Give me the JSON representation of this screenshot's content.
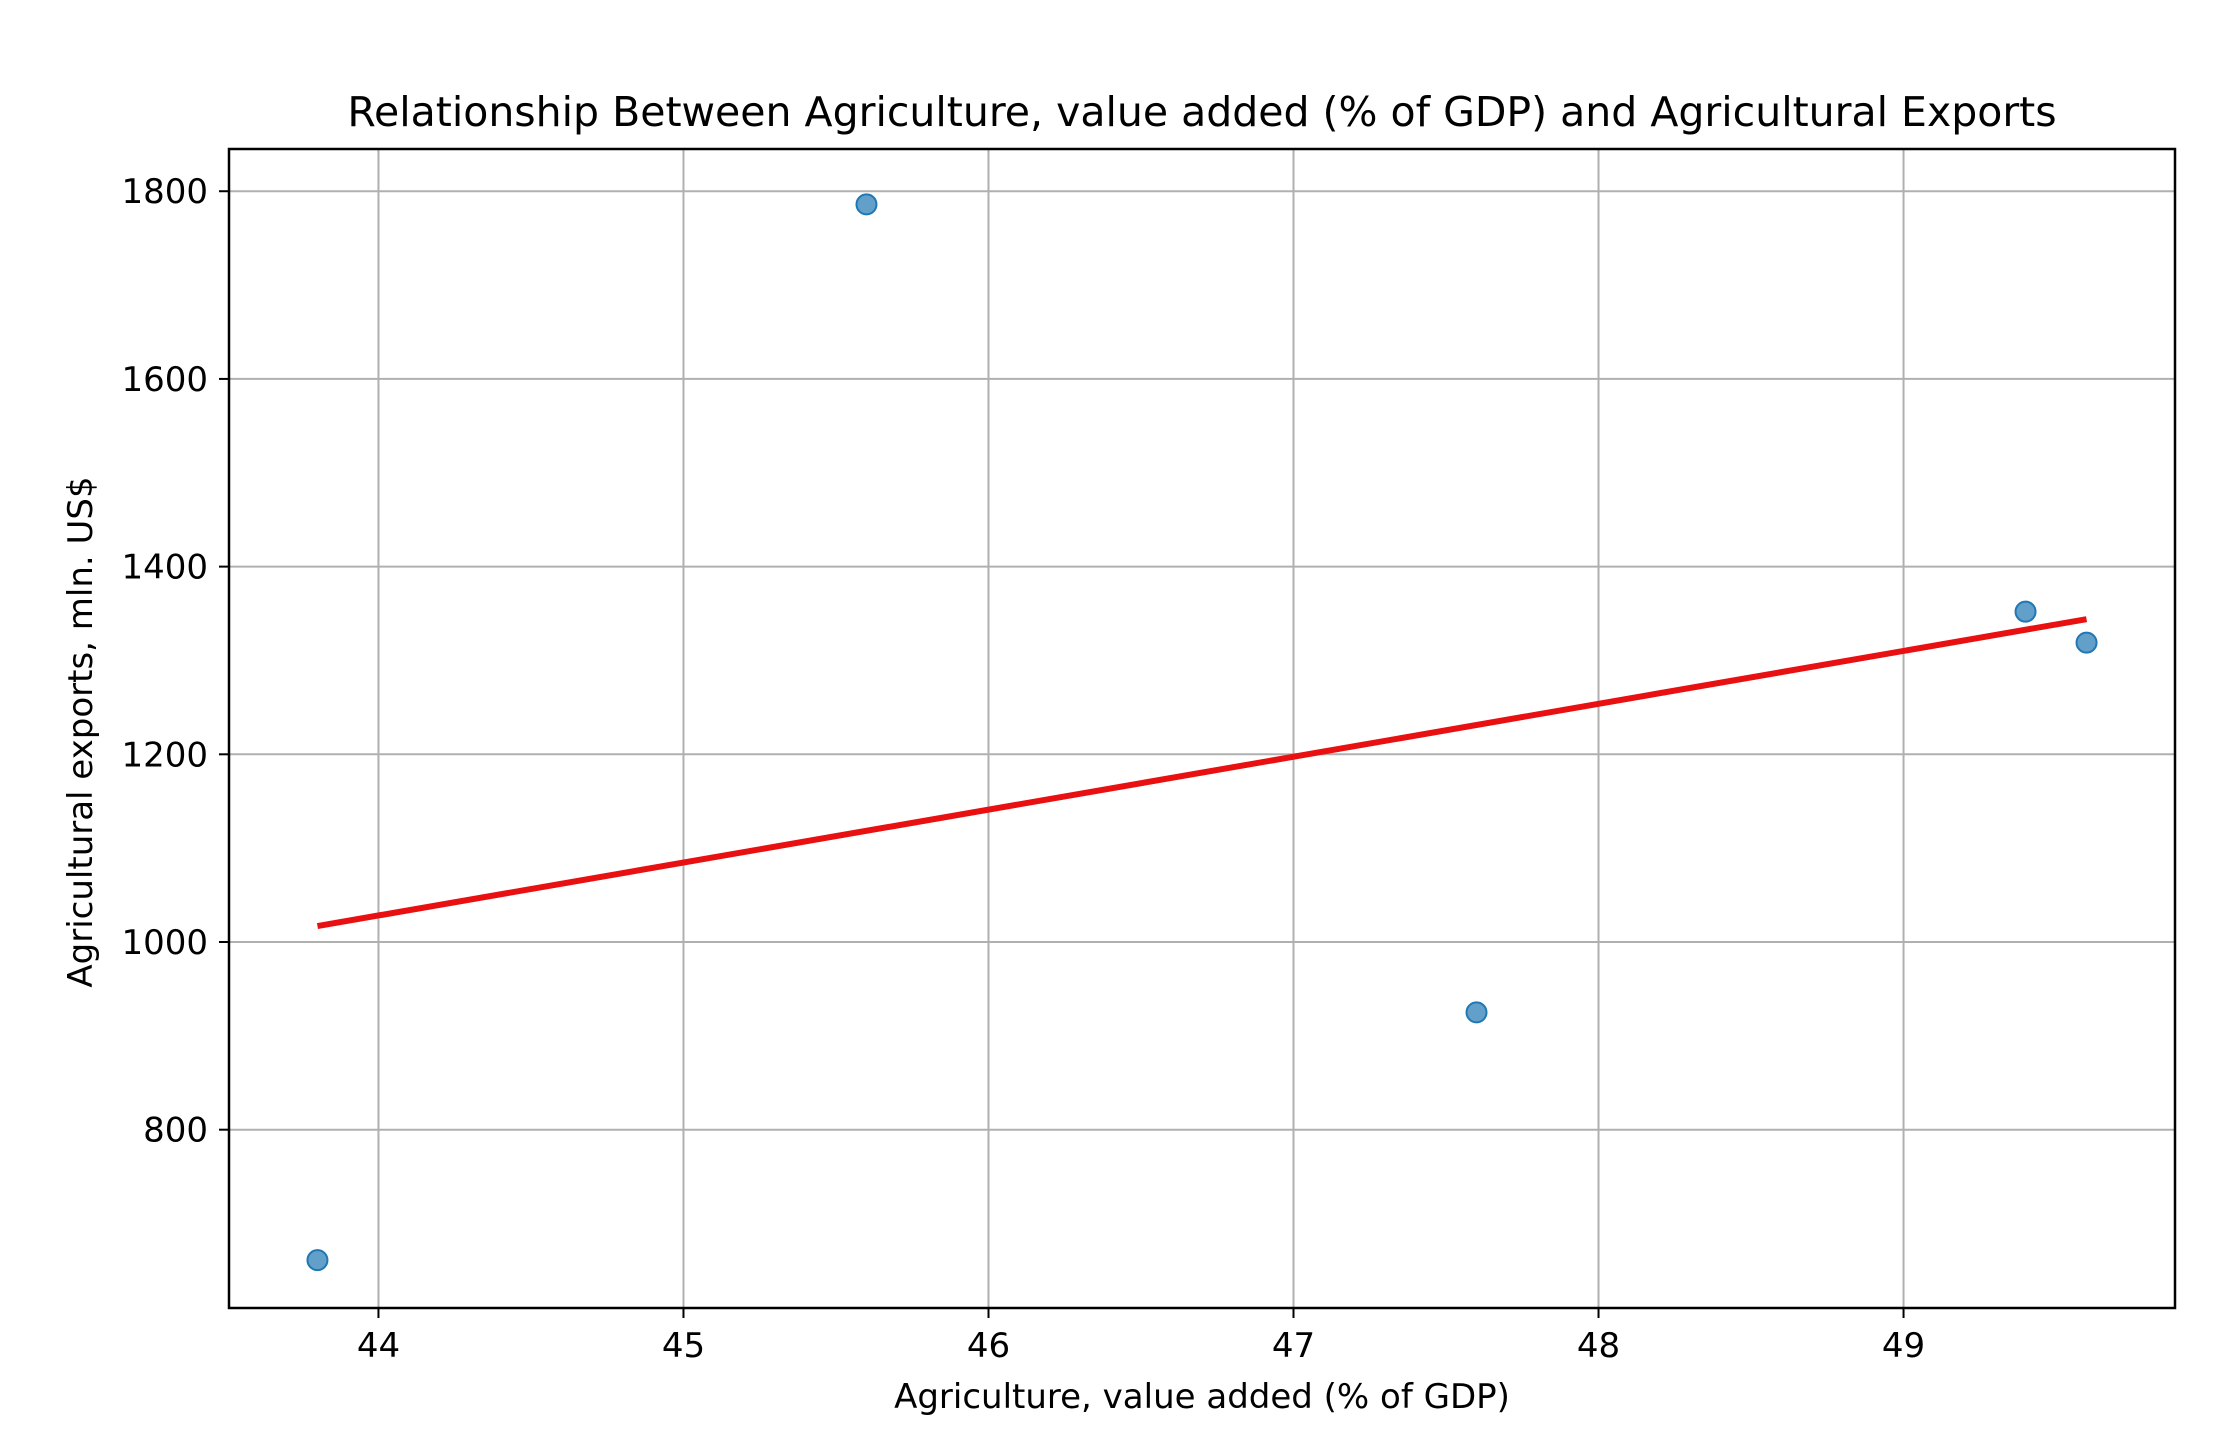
{
  "chart_data": {
    "type": "scatter",
    "title": "Relationship Between Agriculture, value added (% of GDP) and Agricultural Exports",
    "xlabel": "Agriculture, value added (% of GDP)",
    "ylabel": "Agricultural exports, mln. US$",
    "xlim": [
      43.51,
      49.89
    ],
    "ylim": [
      610,
      1845
    ],
    "x_ticks": [
      44,
      45,
      46,
      47,
      48,
      49
    ],
    "y_ticks": [
      800,
      1000,
      1200,
      1400,
      1600,
      1800
    ],
    "grid": true,
    "points": [
      {
        "x": 43.8,
        "y": 661
      },
      {
        "x": 45.6,
        "y": 1786
      },
      {
        "x": 47.6,
        "y": 925
      },
      {
        "x": 49.4,
        "y": 1352
      },
      {
        "x": 49.6,
        "y": 1319
      }
    ],
    "trendline": {
      "x": [
        43.8,
        49.6
      ],
      "y": [
        1017,
        1344
      ]
    },
    "colors": {
      "points": "#1f77b4",
      "trendline": "#e81010",
      "grid": "#b0b0b0"
    }
  }
}
